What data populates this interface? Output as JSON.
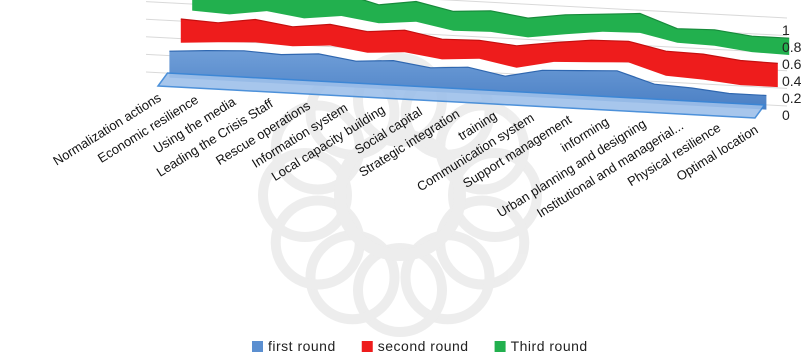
{
  "chart_data": {
    "type": "area",
    "subtype": "3d-stacked",
    "categories": [
      "Normalization actions",
      "Economic resilience",
      "Using the media",
      "Leading the Crisis Staff",
      "Rescue operations",
      "Information system",
      "Local capacity building",
      "Social capital",
      "Strategic integration",
      "training",
      "Communication system",
      "Support management",
      "informing",
      "Urban planning and designing",
      "Institutional and managerial...",
      "Physical resilience",
      "Optimal location"
    ],
    "series": [
      {
        "name": "first round",
        "color": "#5b8fd0",
        "values": [
          0.3,
          0.33,
          0.35,
          0.33,
          0.36,
          0.3,
          0.33,
          0.27,
          0.3,
          0.22,
          0.31,
          0.33,
          0.35,
          0.22,
          0.2,
          0.16,
          0.16
        ]
      },
      {
        "name": "second round",
        "color": "#ee1c1c",
        "values": [
          0.27,
          0.22,
          0.26,
          0.22,
          0.24,
          0.24,
          0.25,
          0.23,
          0.21,
          0.25,
          0.22,
          0.25,
          0.24,
          0.28,
          0.29,
          0.28,
          0.27
        ]
      },
      {
        "name": "Third round",
        "color": "#22b04e",
        "values": [
          0.25,
          0.26,
          0.23,
          0.26,
          0.26,
          0.21,
          0.23,
          0.22,
          0.24,
          0.22,
          0.22,
          0.2,
          0.22,
          0.16,
          0.18,
          0.18,
          0.19
        ]
      }
    ],
    "ytick_labels": [
      "0",
      "0.2",
      "0.4",
      "0.6",
      "0.8",
      "1"
    ],
    "ylim": [
      0,
      1
    ],
    "grid": true,
    "legend_position": "bottom"
  }
}
